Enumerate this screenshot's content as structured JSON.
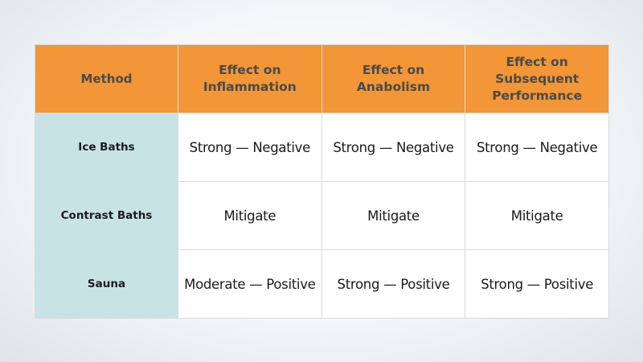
{
  "table": {
    "headers": [
      {
        "lines": [
          "Method"
        ]
      },
      {
        "lines": [
          "Effect on",
          "Inflammation"
        ]
      },
      {
        "lines": [
          "Effect on",
          "Anabolism"
        ]
      },
      {
        "lines": [
          "Effect on",
          "Subsequent",
          "Performance"
        ]
      }
    ],
    "rows": [
      {
        "method": "Ice Baths",
        "values": [
          "Strong — Negative",
          "Strong — Negative",
          "Strong — Negative"
        ]
      },
      {
        "method": "Contrast Baths",
        "values": [
          "Mitigate",
          "Mitigate",
          "Mitigate"
        ]
      },
      {
        "method": "Sauna",
        "values": [
          "Moderate — Positive",
          "Strong — Positive",
          "Strong — Positive"
        ]
      }
    ]
  },
  "colors": {
    "header_bg": "#f29637",
    "header_text": "#4a4a4a",
    "method_bg": "#c8e3e6",
    "cell_bg": "#ffffff",
    "border": "#d7dadd"
  }
}
